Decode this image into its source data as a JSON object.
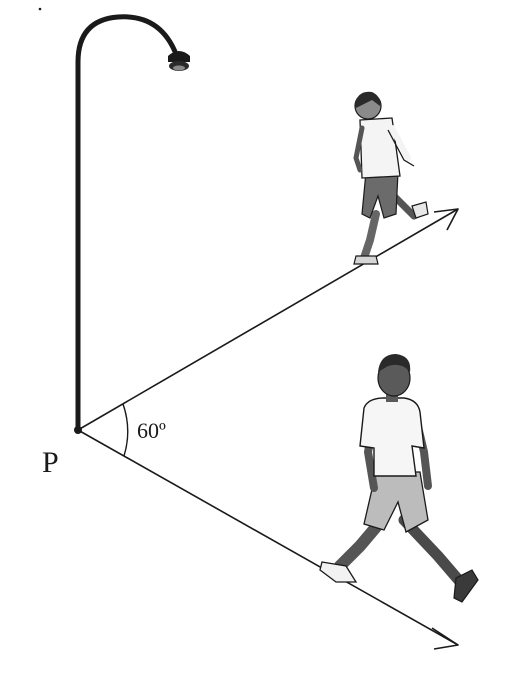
{
  "figure": {
    "point_label": "P",
    "angle_label": "60º"
  },
  "colors": {
    "ink": "#1a1a1a",
    "skin": "#5a5a5a",
    "shirt": "#f4f4f4",
    "shorts_upper": "#6b6b6b",
    "shorts_lower": "#b8b8b8",
    "hair": "#2a2a2a"
  },
  "icons": {
    "lamp": "street-lamp-icon",
    "walker_upper": "walking-person-icon",
    "walker_lower": "walking-person-icon"
  }
}
